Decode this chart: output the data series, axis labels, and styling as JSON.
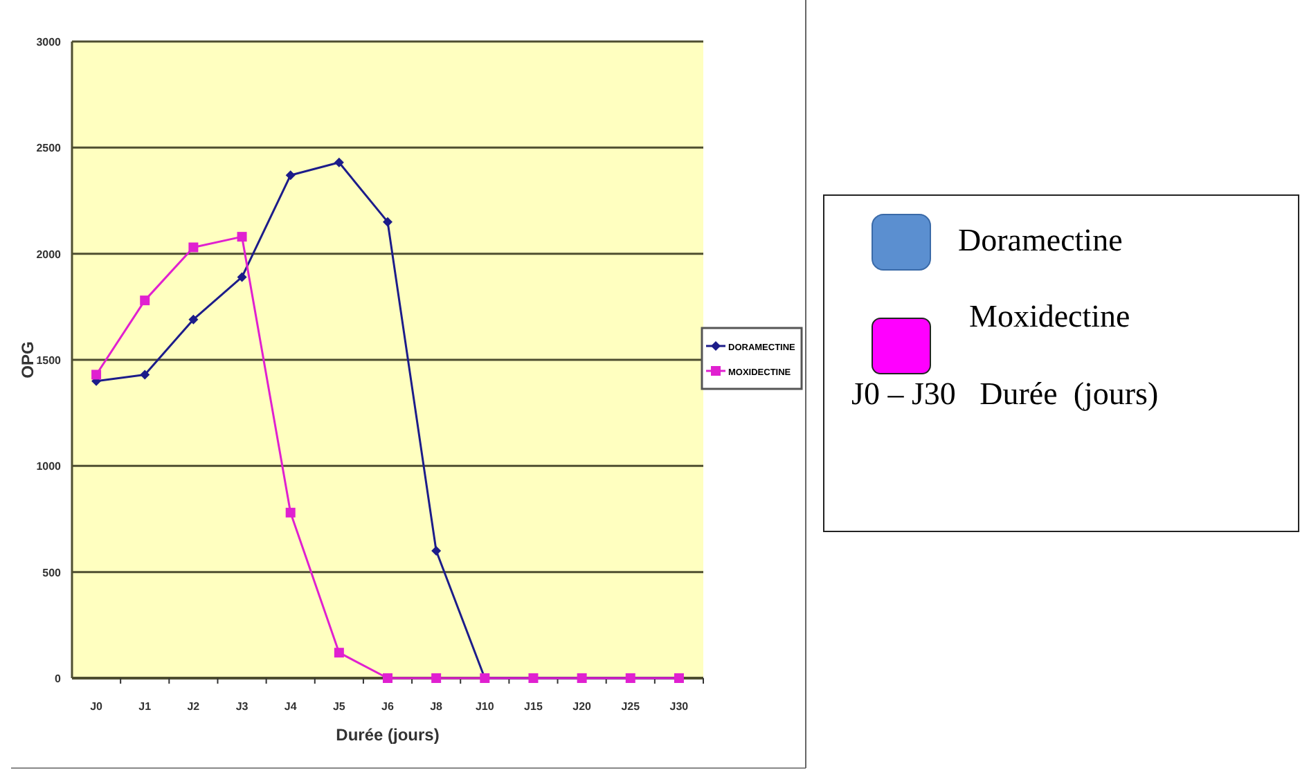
{
  "chart_data": {
    "type": "line",
    "xlabel": "Durée (jours)",
    "ylabel": "OPG",
    "categories": [
      "J0",
      "J1",
      "J2",
      "J3",
      "J4",
      "J5",
      "J6",
      "J8",
      "J10",
      "J15",
      "J20",
      "J25",
      "J30"
    ],
    "series": [
      {
        "name": "DORAMECTINE",
        "color": "#1c1c8a",
        "values": [
          1400,
          1430,
          1690,
          1890,
          2370,
          2430,
          2150,
          600,
          0,
          0,
          0,
          0,
          0
        ]
      },
      {
        "name": "MOXIDECTINE",
        "marker": "square",
        "color": "#e020d0",
        "values": [
          1430,
          1780,
          2030,
          2080,
          780,
          120,
          0,
          0,
          0,
          0,
          0,
          0,
          0
        ]
      }
    ],
    "ylim": [
      0,
      3000
    ],
    "yticks": [
      0,
      500,
      1000,
      1500,
      2000,
      2500,
      3000
    ],
    "grid": "y",
    "legend": "right",
    "marker": "diamond",
    "line_style": "solid",
    "annotations": [
      "Doramectine",
      "Moxidectine",
      "J0 – J30   Durée  (jours)"
    ]
  }
}
